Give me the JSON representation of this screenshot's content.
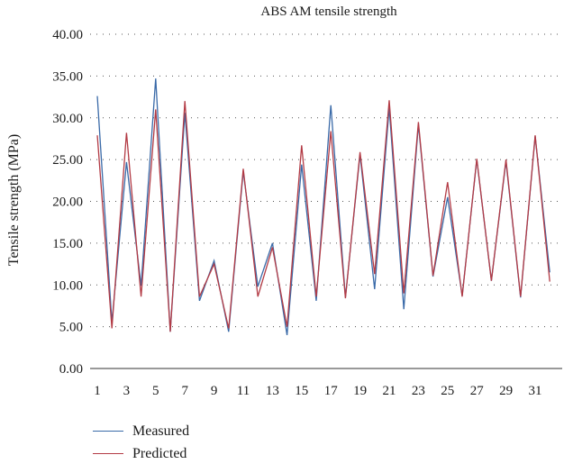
{
  "chart_data": {
    "type": "line",
    "title": "ABS AM tensile strength",
    "ylabel": "Tensile strength (MPa)",
    "xlabel": "",
    "ylim": [
      0,
      40
    ],
    "yticks": [
      "0.00",
      "5.00",
      "10.00",
      "15.00",
      "20.00",
      "25.00",
      "30.00",
      "35.00",
      "40.00"
    ],
    "x": [
      1,
      2,
      3,
      4,
      5,
      6,
      7,
      8,
      9,
      10,
      11,
      12,
      13,
      14,
      15,
      16,
      17,
      18,
      19,
      20,
      21,
      22,
      23,
      24,
      25,
      26,
      27,
      28,
      29,
      30,
      31,
      32
    ],
    "xticks": [
      1,
      3,
      5,
      7,
      9,
      11,
      13,
      15,
      17,
      19,
      21,
      23,
      25,
      27,
      29,
      31
    ],
    "grid": "horizontal dotted",
    "legend_position": "bottom-left",
    "series": [
      {
        "name": "Measured",
        "color": "#3a6aa8",
        "values": [
          32.6,
          5.5,
          24.7,
          9.9,
          34.7,
          4.4,
          30.6,
          8.1,
          12.9,
          4.4,
          23.6,
          9.8,
          15.0,
          4.0,
          24.4,
          8.1,
          31.5,
          8.5,
          25.6,
          9.5,
          31.2,
          7.1,
          29.2,
          11.0,
          20.5,
          8.7,
          25.0,
          10.5,
          24.8,
          8.5,
          27.8,
          11.5
        ]
      },
      {
        "name": "Predicted",
        "color": "#b33b45",
        "values": [
          27.9,
          4.8,
          28.2,
          8.6,
          31.0,
          4.4,
          32.0,
          8.6,
          12.5,
          4.8,
          23.9,
          8.6,
          14.5,
          5.0,
          26.7,
          8.6,
          28.4,
          8.4,
          25.9,
          11.3,
          32.1,
          9.0,
          29.5,
          11.1,
          22.3,
          8.6,
          25.1,
          10.5,
          25.0,
          8.6,
          27.9,
          10.4
        ]
      }
    ]
  }
}
